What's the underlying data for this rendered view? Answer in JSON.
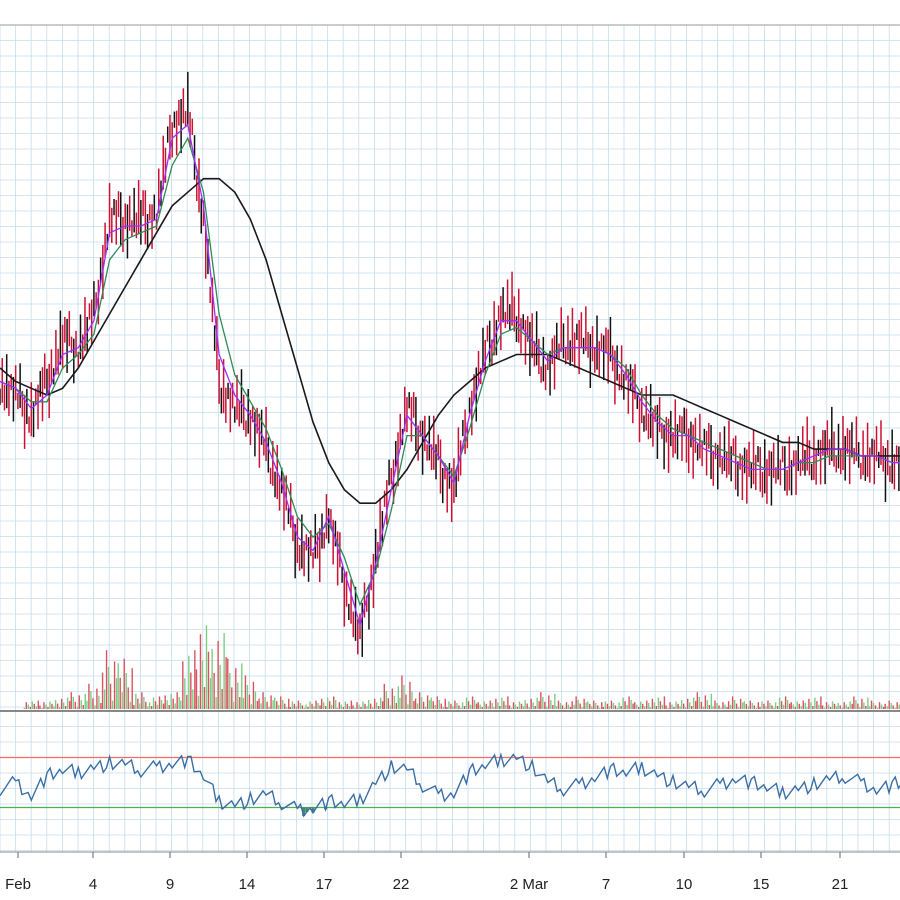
{
  "chart_data": {
    "type": "line",
    "title": "",
    "xlabel": "",
    "ylabel": "",
    "grid": true,
    "x_tick_labels": [
      "Feb",
      "4",
      "9",
      "14",
      "17",
      "22",
      "2 Mar",
      "7",
      "10",
      "15",
      "21"
    ],
    "price_ylim": [
      0,
      100
    ],
    "price": {
      "days": [
        0,
        1,
        2,
        3,
        4,
        5,
        6,
        7,
        8,
        9,
        10,
        11,
        12,
        13,
        14,
        15,
        16,
        17,
        18,
        19,
        20,
        21,
        22,
        23,
        24,
        25,
        26,
        27,
        28,
        29,
        30,
        31,
        32,
        33,
        34,
        35,
        36,
        37,
        38,
        39,
        40,
        41,
        42,
        43,
        44,
        45,
        46,
        47,
        48,
        49,
        50,
        51,
        52,
        53,
        54,
        55,
        56,
        57,
        58
      ],
      "close": [
        48,
        46,
        43,
        48,
        54,
        53,
        58,
        72,
        72,
        72,
        73,
        86,
        88,
        72,
        48,
        44,
        43,
        38,
        32,
        24,
        22,
        28,
        18,
        10,
        22,
        34,
        44,
        40,
        36,
        32,
        44,
        52,
        58,
        58,
        53,
        50,
        54,
        54,
        53,
        52,
        48,
        44,
        41,
        40,
        40,
        38,
        37,
        36,
        35,
        35,
        35,
        36,
        37,
        38,
        38,
        37,
        37,
        36,
        36
      ],
      "ema_fast": [
        48,
        47,
        44,
        46,
        52,
        53,
        57,
        70,
        71,
        71,
        72,
        84,
        86,
        74,
        52,
        46,
        43,
        39,
        33,
        25,
        23,
        28,
        20,
        12,
        21,
        32,
        43,
        40,
        37,
        33,
        43,
        51,
        57,
        57,
        54,
        51,
        53,
        53,
        53,
        52,
        49,
        45,
        42,
        40,
        40,
        38,
        37,
        36,
        35,
        35,
        35,
        36,
        37,
        38,
        38,
        37,
        37,
        36,
        36
      ],
      "ema_mid": [
        48,
        47,
        45,
        45,
        50,
        52,
        55,
        66,
        69,
        70,
        71,
        80,
        84,
        76,
        58,
        49,
        45,
        41,
        35,
        28,
        25,
        27,
        22,
        15,
        20,
        29,
        40,
        40,
        37,
        34,
        41,
        49,
        55,
        56,
        54,
        52,
        53,
        53,
        53,
        52,
        50,
        46,
        43,
        41,
        40,
        39,
        38,
        37,
        36,
        35,
        35,
        36,
        36,
        37,
        37,
        37,
        37,
        36,
        36
      ],
      "ema_slow": [
        50,
        48,
        47,
        46,
        47,
        50,
        54,
        58,
        62,
        66,
        70,
        74,
        76,
        78,
        78,
        76,
        72,
        66,
        58,
        50,
        42,
        36,
        32,
        30,
        30,
        32,
        35,
        39,
        43,
        46,
        48,
        50,
        51,
        52,
        52,
        52,
        51,
        50,
        49,
        48,
        47,
        46,
        46,
        46,
        45,
        44,
        43,
        42,
        41,
        40,
        39,
        39,
        38,
        38,
        38,
        37,
        37,
        37,
        37
      ]
    },
    "volume": {
      "days": [
        2,
        3,
        4,
        5,
        6,
        7,
        8,
        9,
        10,
        11,
        12,
        13,
        14,
        15,
        16,
        17,
        18,
        19,
        20,
        21,
        22,
        23,
        24,
        25,
        26,
        27,
        28,
        29,
        30,
        31,
        32,
        33,
        34,
        35,
        36,
        37,
        38,
        39,
        40,
        41,
        42,
        43,
        44,
        45,
        46,
        47,
        48,
        49,
        50,
        51,
        52,
        53,
        54,
        55,
        56,
        57
      ],
      "values": [
        2,
        2,
        3,
        4,
        6,
        14,
        12,
        4,
        3,
        4,
        14,
        22,
        20,
        12,
        8,
        4,
        3,
        2,
        2,
        3,
        2,
        2,
        3,
        6,
        8,
        4,
        3,
        2,
        3,
        2,
        3,
        2,
        3,
        4,
        2,
        3,
        2,
        2,
        3,
        2,
        3,
        2,
        3,
        4,
        2,
        3,
        2,
        2,
        3,
        2,
        3,
        2,
        2,
        3,
        2,
        2
      ],
      "up_color": "#7dce84",
      "down_color": "#d9535f"
    },
    "oscillator": {
      "ylim": [
        0,
        100
      ],
      "upper_level": 70,
      "lower_level": 30,
      "upper_color": "#f26b6b",
      "lower_color": "#4caf50",
      "days": [
        0,
        1,
        2,
        3,
        4,
        5,
        6,
        7,
        8,
        9,
        10,
        11,
        12,
        13,
        14,
        15,
        16,
        17,
        18,
        19,
        20,
        21,
        22,
        23,
        24,
        25,
        26,
        27,
        28,
        29,
        30,
        31,
        32,
        33,
        34,
        35,
        36,
        37,
        38,
        39,
        40,
        41,
        42,
        43,
        44,
        45,
        46,
        47,
        48,
        49,
        50,
        51,
        52,
        53,
        54,
        55,
        56,
        57,
        58
      ],
      "values": [
        45,
        50,
        40,
        55,
        60,
        58,
        62,
        65,
        64,
        60,
        62,
        66,
        68,
        55,
        35,
        32,
        36,
        40,
        34,
        28,
        30,
        35,
        33,
        36,
        50,
        62,
        60,
        48,
        40,
        42,
        58,
        64,
        68,
        70,
        62,
        50,
        45,
        48,
        55,
        60,
        58,
        62,
        56,
        50,
        46,
        44,
        48,
        54,
        50,
        46,
        42,
        45,
        48,
        52,
        55,
        50,
        45,
        48,
        52
      ],
      "line_color": "#3a6ea5",
      "fill_down_color": "#3f8a6a"
    },
    "colors": {
      "candle_up": "#111111",
      "candle_down": "#cc1133",
      "ema_fast": "#9b30ff",
      "ema_mid": "#2e8b57",
      "ema_slow": "#1a1a1a",
      "grid": "#c5dcec",
      "frame": "#777777"
    }
  }
}
